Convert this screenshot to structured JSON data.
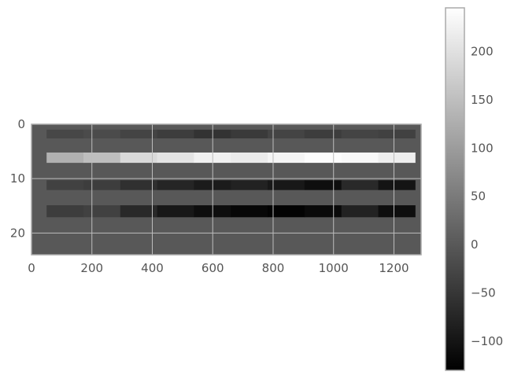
{
  "chart_data": {
    "type": "heatmap",
    "title": "",
    "xlabel": "",
    "ylabel": "",
    "colormap": "gray",
    "grid": true,
    "x_range": [
      0,
      1290
    ],
    "y_range": [
      24,
      0
    ],
    "value_range": [
      -130,
      245
    ],
    "x_ticks": [
      {
        "value": 0,
        "label": "0"
      },
      {
        "value": 200,
        "label": "200"
      },
      {
        "value": 400,
        "label": "400"
      },
      {
        "value": 600,
        "label": "600"
      },
      {
        "value": 800,
        "label": "800"
      },
      {
        "value": 1000,
        "label": "1000"
      },
      {
        "value": 1200,
        "label": "1200"
      }
    ],
    "y_ticks": [
      {
        "value": 0,
        "label": "0"
      },
      {
        "value": 10,
        "label": "10"
      },
      {
        "value": 20,
        "label": "20"
      }
    ],
    "colorbar_ticks": [
      {
        "value": 200,
        "label": "200"
      },
      {
        "value": 150,
        "label": "150"
      },
      {
        "value": 100,
        "label": "100"
      },
      {
        "value": 50,
        "label": "50"
      },
      {
        "value": 0,
        "label": "0"
      },
      {
        "value": -50,
        "label": "−50"
      },
      {
        "value": -100,
        "label": "−100"
      }
    ],
    "background_value": 0,
    "bands": [
      {
        "row_start": 1,
        "row_end": 2.6,
        "x_start": 50,
        "x_end": 1270,
        "values": [
          -25,
          -20,
          -30,
          -40,
          -55,
          -45,
          -30,
          -40,
          -30,
          -35
        ]
      },
      {
        "row_start": 5.2,
        "row_end": 7.1,
        "x_start": 50,
        "x_end": 1270,
        "values": [
          130,
          150,
          190,
          205,
          225,
          215,
          230,
          240,
          235,
          220
        ]
      },
      {
        "row_start": 10.3,
        "row_end": 12.1,
        "x_start": 50,
        "x_end": 1270,
        "values": [
          -35,
          -40,
          -60,
          -75,
          -90,
          -80,
          -95,
          -110,
          -70,
          -100
        ]
      },
      {
        "row_start": 14.9,
        "row_end": 17.1,
        "x_start": 50,
        "x_end": 1270,
        "values": [
          -40,
          -35,
          -70,
          -95,
          -110,
          -120,
          -125,
          -115,
          -80,
          -110
        ]
      }
    ]
  }
}
